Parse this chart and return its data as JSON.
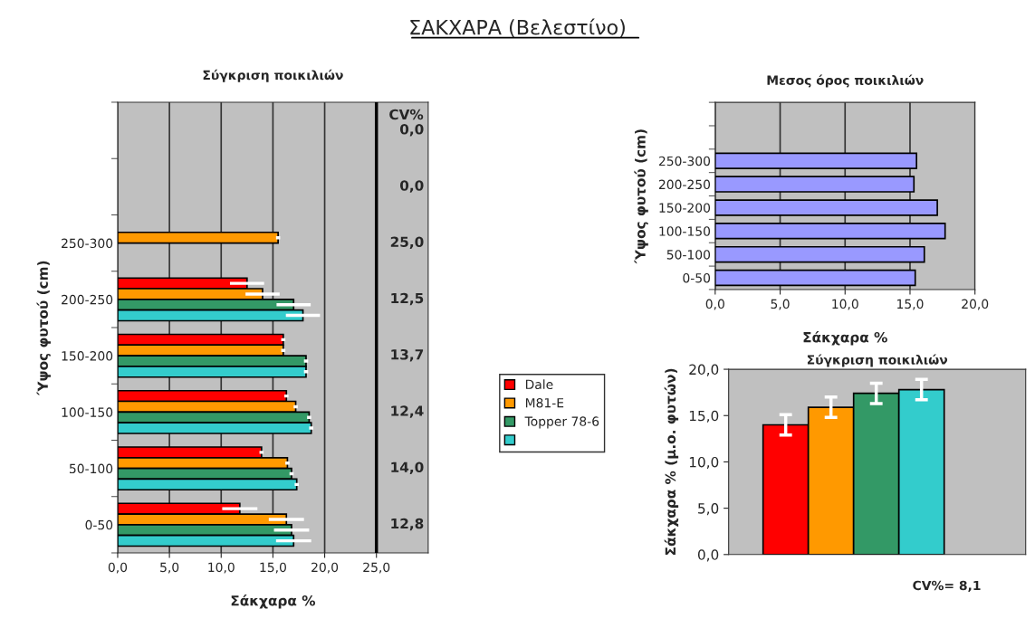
{
  "chart_data": [
    {
      "type": "bar",
      "orientation": "horizontal",
      "title": "ΣΑΚΧΑΡΑ (Βελεστίνο)",
      "subtitle": "Σύγκριση ποικιλιών",
      "xlabel": "Σάκχαρα %",
      "ylabel": "Ύψος φυτού (cm)",
      "categories": [
        null,
        null,
        "250-300",
        "200-250",
        "150-200",
        "100-150",
        "50-100",
        "0-50"
      ],
      "series": [
        {
          "name": "Dale",
          "color": "#ff0000",
          "values": [
            null,
            null,
            0,
            12.5,
            16.0,
            16.3,
            13.9,
            11.8
          ],
          "errors": [
            null,
            null,
            null,
            1.65,
            0.2,
            0.2,
            0.2,
            1.7
          ]
        },
        {
          "name": "M81-E",
          "color": "#ff9900",
          "values": [
            null,
            null,
            15.5,
            14.0,
            16.0,
            17.2,
            16.4,
            16.3
          ],
          "errors": [
            null,
            null,
            0.2,
            1.65,
            0.2,
            0.2,
            0.2,
            1.7
          ]
        },
        {
          "name": "Topper 78-6",
          "color": "#339966",
          "values": [
            null,
            null,
            0,
            17.0,
            18.2,
            18.5,
            16.8,
            16.8
          ],
          "errors": [
            null,
            null,
            null,
            1.65,
            0.2,
            0.2,
            0.2,
            1.7
          ]
        },
        {
          "color": "#33cccc",
          "values": [
            null,
            null,
            0,
            17.9,
            18.2,
            18.7,
            17.3,
            17.0
          ],
          "errors": [
            null,
            null,
            null,
            1.65,
            0.2,
            0.2,
            0.2,
            1.7
          ]
        }
      ],
      "xlim": [
        0,
        30
      ],
      "xticks": [
        {
          "value": 0,
          "label": "0,0"
        },
        {
          "value": 5,
          "label": "5,0"
        },
        {
          "value": 10,
          "label": "10,0"
        },
        {
          "value": 15,
          "label": "15,0"
        },
        {
          "value": 20,
          "label": "20,0"
        },
        {
          "value": 25,
          "label": "25,0"
        }
      ],
      "ref_lines": [
        {
          "axis": "x",
          "value": 25,
          "color": "#000000"
        }
      ],
      "annotations": [
        "CV%",
        "0,0",
        "0,0",
        "25,0",
        "12,5",
        "13,7",
        "12,4",
        "14,0",
        "12,8"
      ],
      "grid": "x",
      "legend": "right"
    },
    {
      "type": "bar",
      "orientation": "horizontal",
      "title": "Μεσος όρος ποικιλιών",
      "xlabel": "Σάκχαρα %",
      "ylabel": "Ύψος φυτού (cm)",
      "categories": [
        null,
        null,
        "250-300",
        "200-250",
        "150-200",
        "100-150",
        "50-100",
        "0-50"
      ],
      "values": [
        null,
        null,
        15.5,
        15.3,
        17.1,
        17.7,
        16.1,
        15.4
      ],
      "color": "#9999ff",
      "xlim": [
        0,
        20
      ],
      "xticks": [
        {
          "value": 0,
          "label": "0,0"
        },
        {
          "value": 5,
          "label": "5,0"
        },
        {
          "value": 10,
          "label": "10,0"
        },
        {
          "value": 15,
          "label": "15,0"
        },
        {
          "value": 20,
          "label": "20,0"
        }
      ],
      "grid": "x"
    },
    {
      "type": "bar",
      "title": "Σύγκριση ποικιλιών",
      "ylabel": "Σάκχαρα % (μ.ο. φυτών)",
      "categories": [
        null,
        null,
        null,
        null
      ],
      "values": [
        14.0,
        15.9,
        17.4,
        17.8
      ],
      "errors": [
        1.1,
        1.1,
        1.1,
        1.1
      ],
      "colors": [
        "#ff0000",
        "#ff9900",
        "#339966",
        "#33cccc"
      ],
      "ylim": [
        0,
        20
      ],
      "yticks": [
        {
          "value": 0,
          "label": "0,0"
        },
        {
          "value": 5,
          "label": "5,0"
        },
        {
          "value": 10,
          "label": "10,0"
        },
        {
          "value": 15,
          "label": "15,0"
        },
        {
          "value": 20,
          "label": "20,0"
        }
      ],
      "annotations": [
        "CV%= 8,1"
      ],
      "grid": false
    }
  ]
}
